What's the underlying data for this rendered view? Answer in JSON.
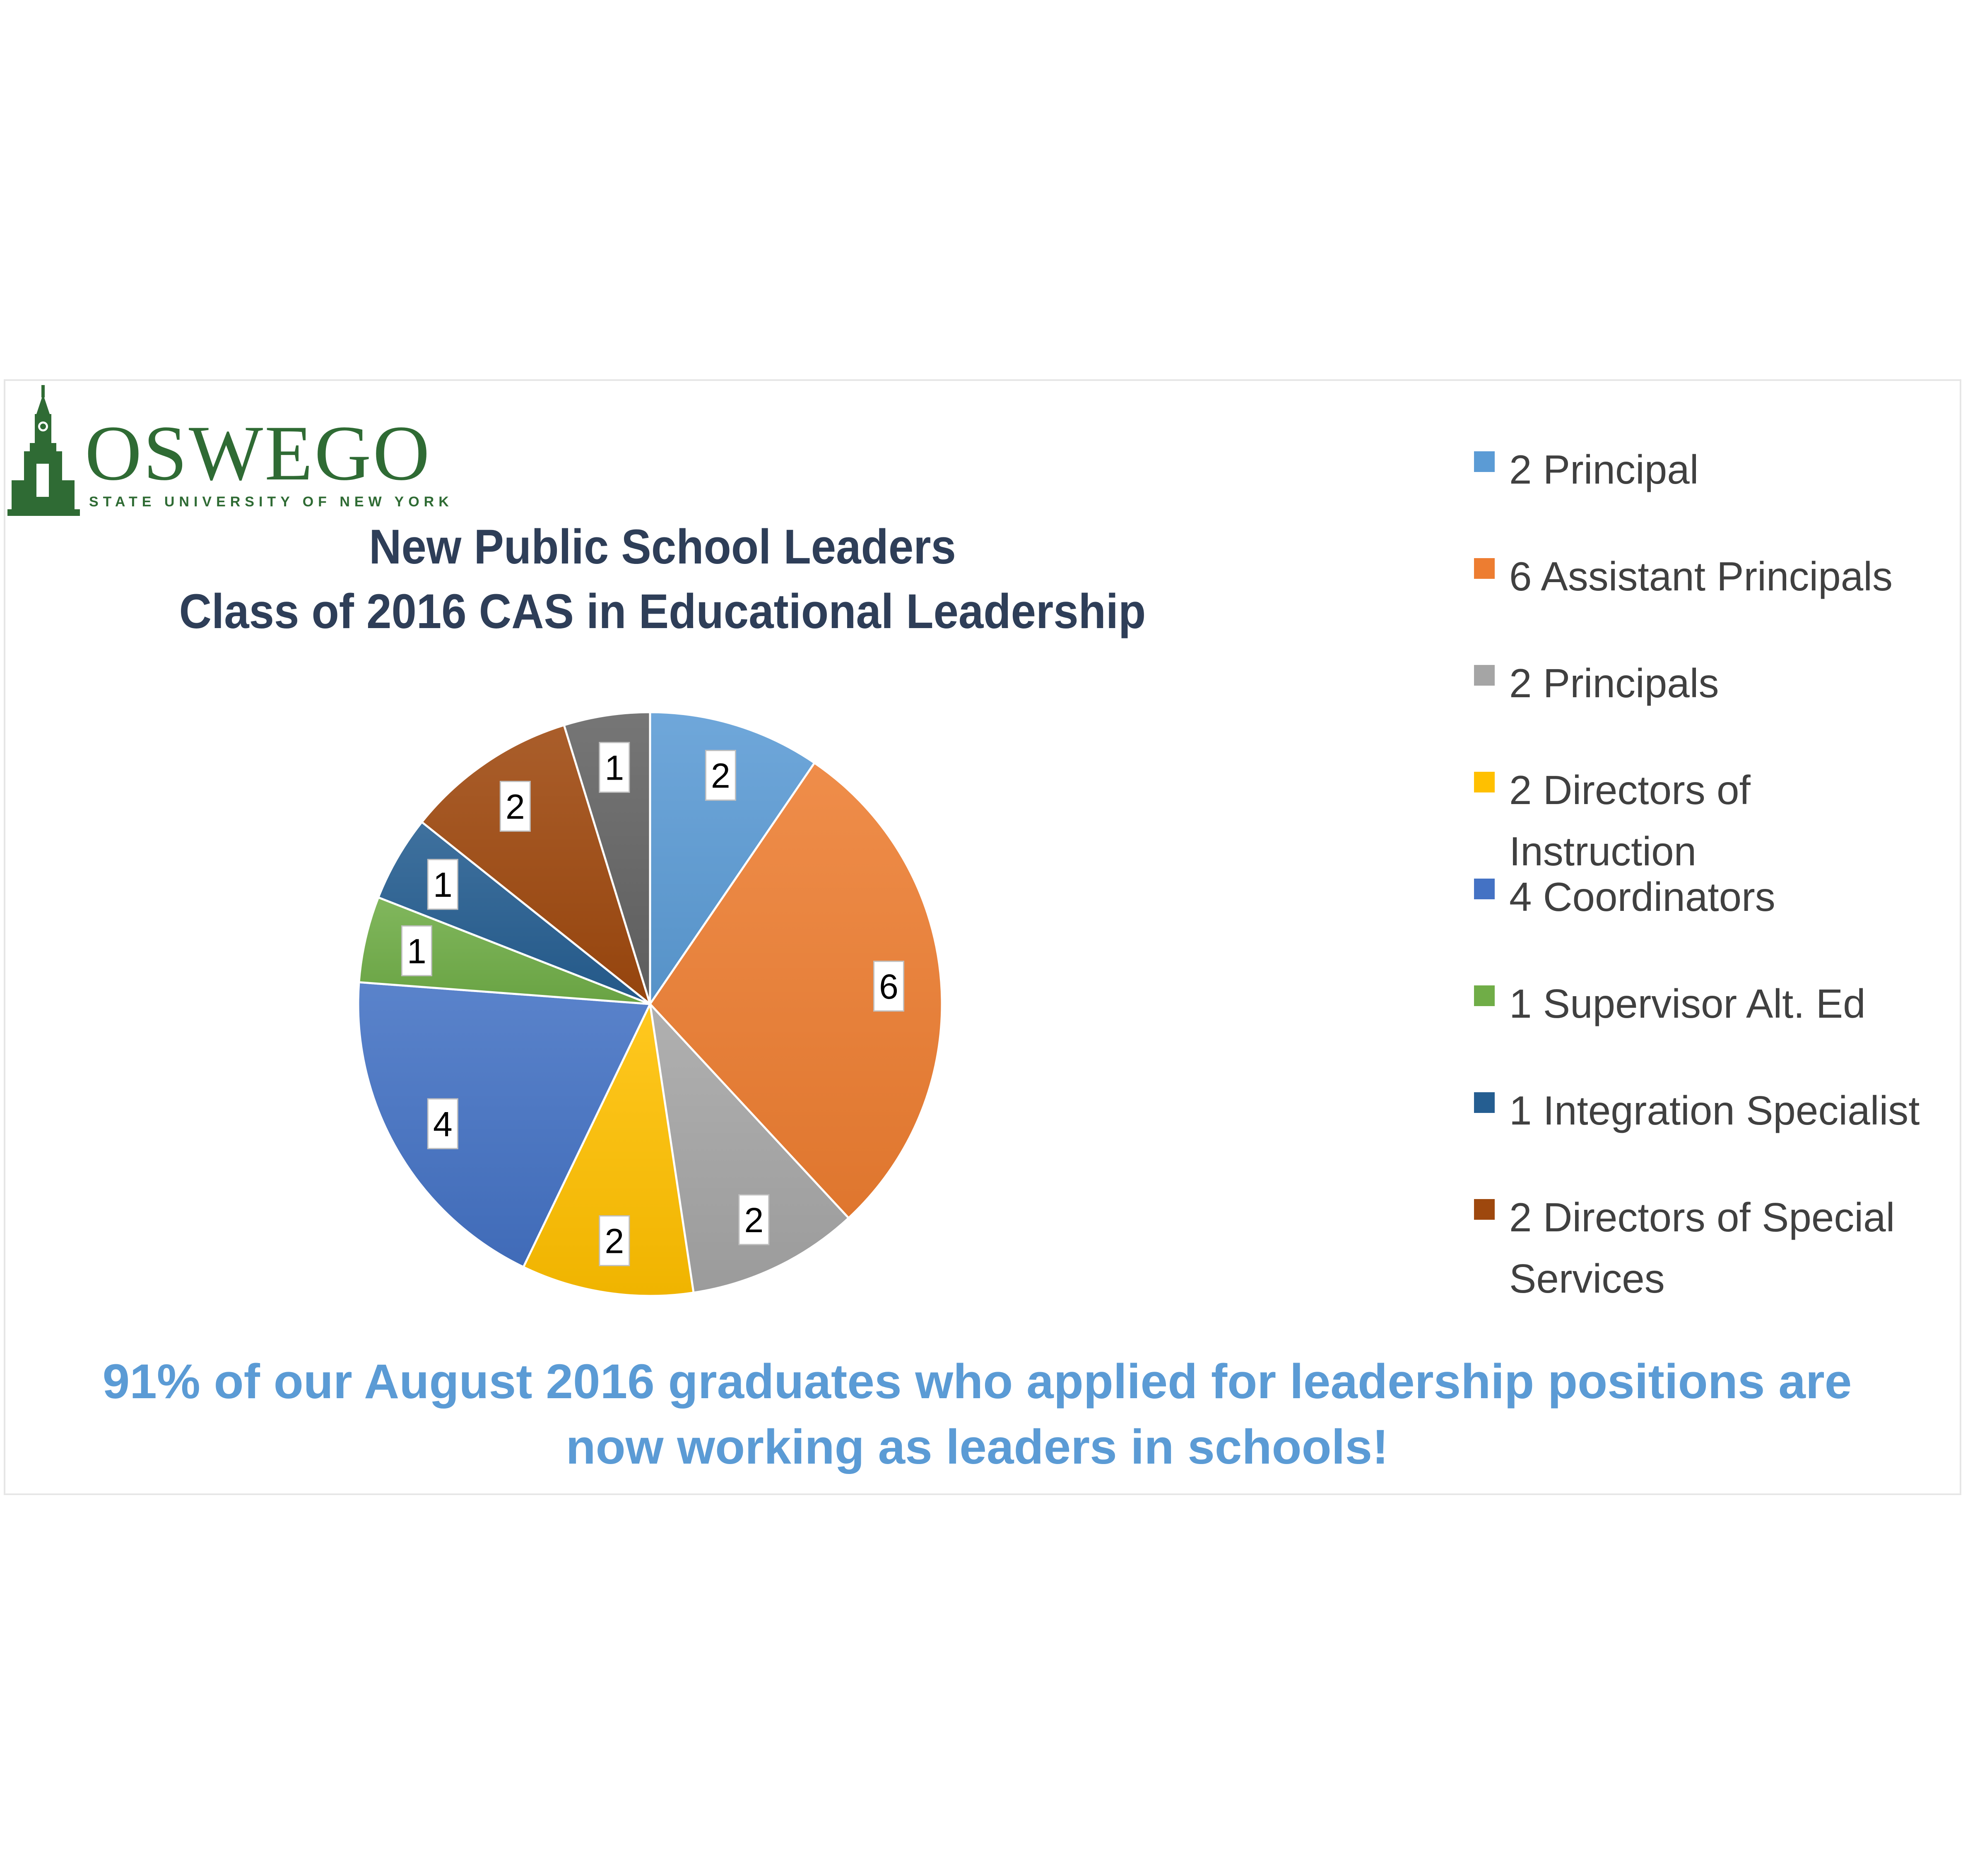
{
  "logo": {
    "wordmark": "OSWEGO",
    "subtitle": "STATE UNIVERSITY OF NEW YORK",
    "icon": "clock-tower-icon",
    "color": "#2f6b34"
  },
  "title": {
    "line1": "New Public School Leaders",
    "line2": "Class of 2016 CAS in Educational Leadership"
  },
  "chart_data": {
    "type": "pie",
    "title": "New Public School Leaders Class of 2016 CAS in Educational Leadership",
    "start": "12 o'clock",
    "direction": "clockwise",
    "data_labels": true,
    "legend_position": "right",
    "slices": [
      {
        "label": "2 Principal",
        "value": 2,
        "color": "#5b9bd5"
      },
      {
        "label": "6 Assistant Principals",
        "value": 6,
        "color": "#ed7d31"
      },
      {
        "label": "2 Principals",
        "value": 2,
        "color": "#a5a5a5"
      },
      {
        "label": "2 Directors of Instruction",
        "value": 2,
        "color": "#ffc000"
      },
      {
        "label": "4 Coordinators",
        "value": 4,
        "color": "#4472c4"
      },
      {
        "label": "1 Supervisor Alt. Ed",
        "value": 1,
        "color": "#70ad47"
      },
      {
        "label": "1 Integration Specialist",
        "value": 1,
        "color": "#255e91"
      },
      {
        "label": "2 Directors of Special Services",
        "value": 2,
        "color": "#9e480e"
      },
      {
        "label": "",
        "value": 1,
        "color": "#636363"
      }
    ]
  },
  "legend": {
    "items": [
      {
        "label": "2 Principal",
        "color": "#5b9bd5"
      },
      {
        "label": "6 Assistant Principals",
        "color": "#ed7d31"
      },
      {
        "label": "2 Principals",
        "color": "#a5a5a5"
      },
      {
        "label": "2 Directors of Instruction",
        "color": "#ffc000"
      },
      {
        "label": "4 Coordinators",
        "color": "#4472c4"
      },
      {
        "label": "1 Supervisor Alt. Ed",
        "color": "#70ad47"
      },
      {
        "label": "1 Integration Specialist",
        "color": "#255e91"
      },
      {
        "label": "2 Directors of Special Services",
        "color": "#9e480e"
      }
    ]
  },
  "footer": {
    "text": "91% of our August 2016 graduates who applied for leadership positions are now working as leaders in schools!",
    "color": "#5b9bd5"
  }
}
